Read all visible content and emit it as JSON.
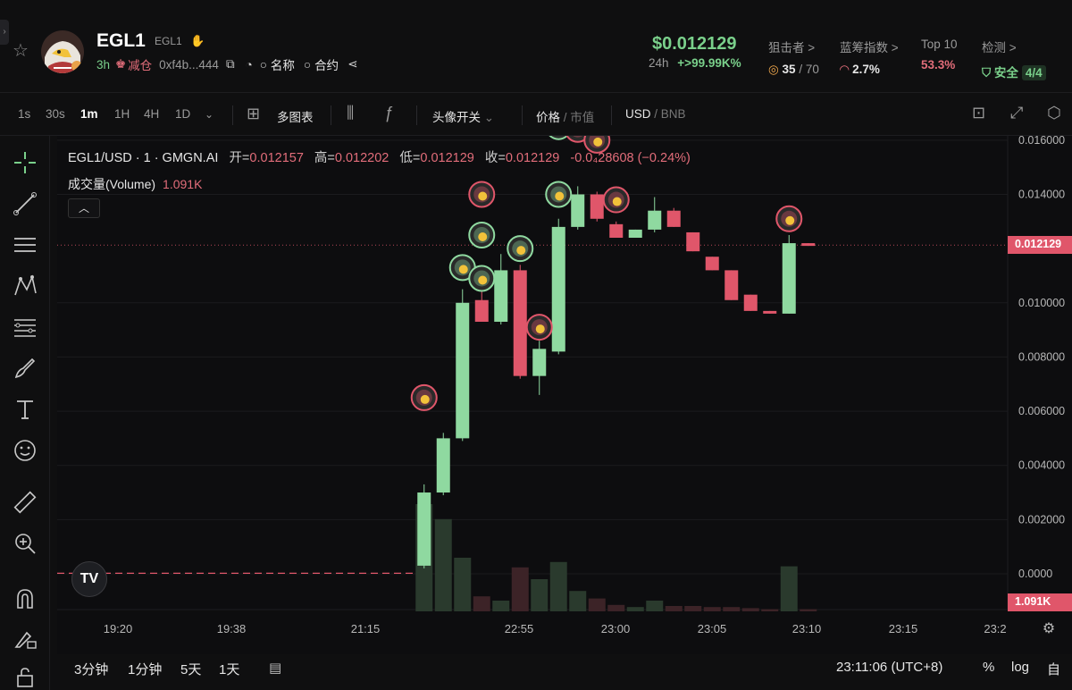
{
  "header": {
    "edge_tab": "›",
    "token_symbol": "EGL1",
    "token_sub": "EGL1",
    "age": "3h",
    "reduce_label": "减仓",
    "address": "0xf4b...444",
    "search_name_label": "名称",
    "search_contract_label": "合约",
    "price": "$0.012129",
    "period": "24h",
    "change": "+>99.99K%",
    "stats": [
      {
        "title": "狙击者 >",
        "value": "35",
        "value_total": "/ 70"
      },
      {
        "title": "蓝筹指数 >",
        "value": "2.7%"
      },
      {
        "title": "Top 10",
        "value": "53.3%"
      },
      {
        "title": "检测 >",
        "value": "安全",
        "pill": "4/4"
      }
    ]
  },
  "toolbar": {
    "timeframes": [
      "1s",
      "30s",
      "1m",
      "1H",
      "4H",
      "1D"
    ],
    "active_timeframe": "1m",
    "multi_chart": "多图表",
    "avatar_toggle": "头像开关",
    "price_label": "价格",
    "mcap_label": "市值",
    "usd_label": "USD",
    "bnb_label": "BNB"
  },
  "legend": {
    "pair": "EGL1/USD · 1 · GMGN.AI",
    "open_label": "开=",
    "open": "0.012157",
    "high_label": "高=",
    "high": "0.012202",
    "low_label": "低=",
    "low": "0.012129",
    "close_label": "收=",
    "close": "0.012129",
    "change": "-0.0₄28608 (−0.24%)",
    "volume_label": "成交量(Volume)",
    "volume": "1.091K"
  },
  "chart_data": {
    "type": "candlestick",
    "y_ticks": [
      "0.016000",
      "0.014000",
      "0.012129",
      "0.010000",
      "0.008000",
      "0.006000",
      "0.004000",
      "0.002000",
      "0.0000"
    ],
    "y_tick_values": [
      0.016,
      0.014,
      0.012129,
      0.01,
      0.008,
      0.006,
      0.004,
      0.002,
      0.0
    ],
    "ylim": [
      0,
      0.01616
    ],
    "last_price_label": "0.012129",
    "volume_label": "1.091K",
    "x_labels": [
      "19:20",
      "19:38",
      "21:15",
      "22:55",
      "23:00",
      "23:05",
      "23:10",
      "23:15",
      "23:2"
    ],
    "flat_segment": {
      "price": 2e-05
    },
    "candles": [
      {
        "o": 0.0003,
        "h": 0.0033,
        "l": 0.0002,
        "c": 0.003,
        "v": 1.0
      },
      {
        "o": 0.003,
        "h": 0.0052,
        "l": 0.0029,
        "c": 0.005,
        "v": 0.86
      },
      {
        "o": 0.005,
        "h": 0.0105,
        "l": 0.0049,
        "c": 0.01,
        "v": 0.5
      },
      {
        "o": 0.0101,
        "h": 0.0106,
        "l": 0.0093,
        "c": 0.0093,
        "v": 0.14
      },
      {
        "o": 0.0093,
        "h": 0.0118,
        "l": 0.0092,
        "c": 0.0112,
        "v": 0.1
      },
      {
        "o": 0.0112,
        "h": 0.0114,
        "l": 0.0072,
        "c": 0.0073,
        "v": 0.41
      },
      {
        "o": 0.0073,
        "h": 0.0086,
        "l": 0.0066,
        "c": 0.0083,
        "v": 0.3
      },
      {
        "o": 0.0082,
        "h": 0.0131,
        "l": 0.0081,
        "c": 0.0128,
        "v": 0.46
      },
      {
        "o": 0.0128,
        "h": 0.0143,
        "l": 0.0127,
        "c": 0.014,
        "v": 0.19
      },
      {
        "o": 0.014,
        "h": 0.0141,
        "l": 0.013,
        "c": 0.0131,
        "v": 0.12
      },
      {
        "o": 0.0129,
        "h": 0.013,
        "l": 0.0124,
        "c": 0.0124,
        "v": 0.06
      },
      {
        "o": 0.0124,
        "h": 0.0127,
        "l": 0.0124,
        "c": 0.0127,
        "v": 0.04
      },
      {
        "o": 0.0127,
        "h": 0.0139,
        "l": 0.0126,
        "c": 0.0134,
        "v": 0.1
      },
      {
        "o": 0.0134,
        "h": 0.0135,
        "l": 0.0128,
        "c": 0.0128,
        "v": 0.05
      },
      {
        "o": 0.0126,
        "h": 0.0126,
        "l": 0.0119,
        "c": 0.0119,
        "v": 0.05
      },
      {
        "o": 0.0117,
        "h": 0.0117,
        "l": 0.0112,
        "c": 0.0112,
        "v": 0.04
      },
      {
        "o": 0.0112,
        "h": 0.0112,
        "l": 0.0101,
        "c": 0.0101,
        "v": 0.04
      },
      {
        "o": 0.0103,
        "h": 0.0103,
        "l": 0.0097,
        "c": 0.0097,
        "v": 0.03
      },
      {
        "o": 0.0097,
        "h": 0.0097,
        "l": 0.0096,
        "c": 0.0096,
        "v": 0.02
      },
      {
        "o": 0.0096,
        "h": 0.0125,
        "l": 0.0096,
        "c": 0.0122,
        "v": 0.42
      },
      {
        "o": 0.0122,
        "h": 0.0122,
        "l": 0.0121,
        "c": 0.0121,
        "v": 0.02
      }
    ],
    "markers": [
      {
        "candle": 0,
        "price": 0.0065,
        "ring": "red"
      },
      {
        "candle": 2,
        "price": 0.0113,
        "ring": "green"
      },
      {
        "candle": 3,
        "price": 0.014,
        "ring": "red"
      },
      {
        "candle": 3,
        "price": 0.0125,
        "ring": "green"
      },
      {
        "candle": 3,
        "price": 0.0109,
        "ring": "green"
      },
      {
        "candle": 5,
        "price": 0.012,
        "ring": "green"
      },
      {
        "candle": 6,
        "price": 0.0091,
        "ring": "red"
      },
      {
        "candle": 7,
        "price": 0.0165,
        "ring": "green"
      },
      {
        "candle": 8,
        "price": 0.0164,
        "ring": "red"
      },
      {
        "candle": 9,
        "price": 0.016,
        "ring": "red"
      },
      {
        "candle": 7,
        "price": 0.014,
        "ring": "green"
      },
      {
        "candle": 10,
        "price": 0.0138,
        "ring": "red"
      },
      {
        "candle": 19,
        "price": 0.0131,
        "ring": "red"
      }
    ],
    "colors": {
      "up": "#8fd9a0",
      "down": "#e0566a",
      "vol_up": "#2a3a2d",
      "vol_down": "#3c2327",
      "grid": "#1b1b1e"
    }
  },
  "bottom_bar": {
    "ranges": [
      "3分钟",
      "1分钟",
      "5天",
      "1天"
    ],
    "time": "23:11:06 (UTC+8)",
    "percent": "%",
    "log": "log",
    "auto": "自"
  }
}
